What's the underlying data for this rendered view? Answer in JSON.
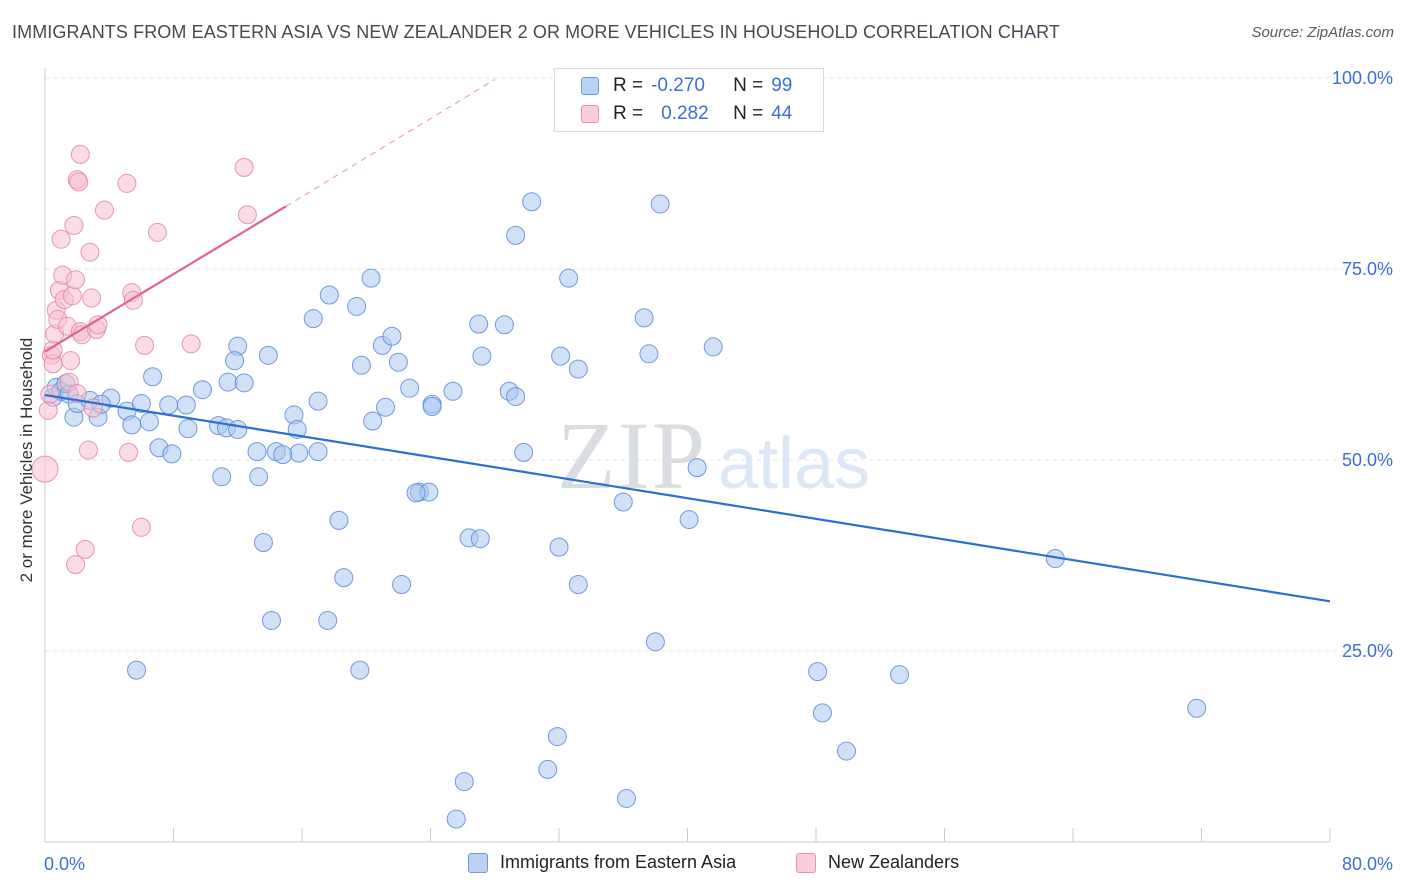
{
  "title": "IMMIGRANTS FROM EASTERN ASIA VS NEW ZEALANDER 2 OR MORE VEHICLES IN HOUSEHOLD CORRELATION CHART",
  "source": "Source: ZipAtlas.com",
  "watermark": {
    "zip": "ZIP",
    "atlas": "atlas"
  },
  "colors": {
    "blue_fill": "#a9c6f0",
    "blue_stroke": "#5b8ad8",
    "blue_line": "#2a6fd1",
    "pink_fill": "#f7bfd2",
    "pink_stroke": "#e484a7",
    "pink_line": "#e0628d",
    "grid": "#e3e5ea",
    "tick_label": "#3b6fd4",
    "axis": "#c8cbd0"
  },
  "legend": {
    "rows": [
      {
        "r_label": "R =",
        "r_value": "-0.270",
        "n_label": "N =",
        "n_value": "99"
      },
      {
        "r_label": "R =",
        "r_value": "0.282",
        "n_label": "N =",
        "n_value": "44"
      }
    ]
  },
  "chart_data": {
    "type": "scatter",
    "title": "IMMIGRANTS FROM EASTERN ASIA VS NEW ZEALANDER 2 OR MORE VEHICLES IN HOUSEHOLD CORRELATION CHART",
    "xlabel": "",
    "ylabel": "2 or more Vehicles in Household",
    "xlim": [
      0,
      80
    ],
    "ylim": [
      0,
      100
    ],
    "x_tick_labels": [
      "0.0%",
      "80.0%"
    ],
    "y_ticks": [
      25,
      50,
      75,
      100
    ],
    "y_tick_labels": [
      "25.0%",
      "50.0%",
      "75.0%",
      "100.0%"
    ],
    "grid": true,
    "legend_position": "top-center",
    "series": [
      {
        "name": "Immigrants from Eastern Asia",
        "color": "#a9c6f0",
        "trend": {
          "x0": 0,
          "y0": 58.5,
          "x1": 80,
          "y1": 31.5
        },
        "points": [
          [
            0.5,
            58.2
          ],
          [
            0.7,
            59.5
          ],
          [
            1.0,
            59.0
          ],
          [
            1.3,
            60.0
          ],
          [
            1.5,
            58.6
          ],
          [
            1.8,
            55.6
          ],
          [
            2.0,
            57.4
          ],
          [
            2.8,
            57.8
          ],
          [
            3.3,
            55.6
          ],
          [
            4.1,
            58.1
          ],
          [
            3.5,
            57.3
          ],
          [
            5.1,
            56.4
          ],
          [
            5.4,
            54.6
          ],
          [
            6.0,
            57.4
          ],
          [
            6.5,
            55.0
          ],
          [
            6.7,
            60.9
          ],
          [
            7.1,
            51.6
          ],
          [
            7.7,
            57.2
          ],
          [
            8.8,
            57.2
          ],
          [
            8.9,
            54.1
          ],
          [
            9.8,
            59.2
          ],
          [
            10.8,
            54.5
          ],
          [
            11.3,
            54.2
          ],
          [
            11.4,
            60.2
          ],
          [
            12.4,
            60.1
          ],
          [
            12.0,
            64.9
          ],
          [
            11.8,
            63.0
          ],
          [
            11.0,
            47.8
          ],
          [
            12.0,
            54.0
          ],
          [
            13.2,
            51.1
          ],
          [
            13.6,
            39.2
          ],
          [
            13.9,
            63.7
          ],
          [
            14.4,
            51.1
          ],
          [
            15.5,
            55.9
          ],
          [
            15.7,
            54.0
          ],
          [
            15.8,
            50.9
          ],
          [
            17.0,
            57.7
          ],
          [
            17.0,
            51.1
          ],
          [
            16.7,
            68.5
          ],
          [
            17.7,
            71.6
          ],
          [
            18.3,
            42.1
          ],
          [
            18.6,
            34.6
          ],
          [
            19.4,
            70.1
          ],
          [
            19.7,
            62.4
          ],
          [
            20.3,
            73.8
          ],
          [
            20.4,
            55.1
          ],
          [
            21.0,
            65.0
          ],
          [
            21.2,
            56.9
          ],
          [
            21.6,
            66.2
          ],
          [
            22.0,
            62.8
          ],
          [
            22.2,
            33.7
          ],
          [
            22.7,
            59.4
          ],
          [
            23.3,
            45.8
          ],
          [
            23.9,
            45.8
          ],
          [
            24.1,
            57.3
          ],
          [
            25.4,
            59.0
          ],
          [
            26.4,
            39.8
          ],
          [
            27.1,
            39.7
          ],
          [
            27.2,
            63.6
          ],
          [
            27.0,
            67.8
          ],
          [
            28.6,
            67.7
          ],
          [
            28.9,
            59.0
          ],
          [
            29.3,
            58.3
          ],
          [
            29.8,
            51.0
          ],
          [
            29.3,
            79.4
          ],
          [
            30.3,
            83.8
          ],
          [
            32.0,
            38.6
          ],
          [
            32.1,
            63.6
          ],
          [
            32.6,
            73.8
          ],
          [
            33.2,
            61.9
          ],
          [
            33.2,
            33.7
          ],
          [
            36.0,
            44.5
          ],
          [
            37.3,
            68.6
          ],
          [
            37.6,
            63.9
          ],
          [
            38.3,
            83.5
          ],
          [
            38.0,
            26.2
          ],
          [
            40.1,
            42.2
          ],
          [
            40.6,
            49.0
          ],
          [
            41.6,
            64.8
          ],
          [
            48.1,
            22.3
          ],
          [
            53.2,
            21.9
          ],
          [
            5.7,
            22.5
          ],
          [
            14.1,
            29.0
          ],
          [
            17.6,
            29.0
          ],
          [
            19.6,
            22.5
          ],
          [
            13.3,
            47.8
          ],
          [
            23.1,
            45.7
          ],
          [
            31.9,
            13.8
          ],
          [
            31.3,
            9.5
          ],
          [
            36.2,
            5.7
          ],
          [
            26.1,
            7.9
          ],
          [
            25.6,
            3.0
          ],
          [
            48.4,
            16.9
          ],
          [
            49.9,
            11.9
          ],
          [
            71.7,
            17.5
          ],
          [
            62.9,
            37.1
          ],
          [
            14.8,
            50.7
          ],
          [
            7.9,
            50.8
          ],
          [
            24.1,
            57.0
          ]
        ]
      },
      {
        "name": "New Zealanders",
        "color": "#f7bfd2",
        "trend": {
          "x0": 0,
          "y0": 64.2,
          "x1": 15,
          "y1": 83.2,
          "dashed_to_x": 28,
          "dashed_to_y": 99.8
        },
        "points": [
          [
            0.0,
            48.8
          ],
          [
            0.2,
            56.5
          ],
          [
            0.3,
            58.6
          ],
          [
            0.4,
            63.7
          ],
          [
            0.5,
            62.6
          ],
          [
            0.5,
            64.4
          ],
          [
            0.6,
            66.5
          ],
          [
            0.7,
            69.6
          ],
          [
            0.8,
            68.4
          ],
          [
            0.9,
            72.2
          ],
          [
            1.0,
            78.9
          ],
          [
            1.1,
            74.2
          ],
          [
            1.2,
            71.0
          ],
          [
            1.4,
            67.5
          ],
          [
            1.5,
            60.2
          ],
          [
            1.6,
            63.0
          ],
          [
            1.7,
            71.5
          ],
          [
            1.8,
            80.7
          ],
          [
            1.9,
            73.6
          ],
          [
            2.2,
            66.8
          ],
          [
            2.0,
            58.7
          ],
          [
            1.9,
            36.3
          ],
          [
            2.0,
            86.7
          ],
          [
            2.1,
            86.4
          ],
          [
            2.2,
            90.0
          ],
          [
            2.3,
            66.4
          ],
          [
            2.5,
            38.3
          ],
          [
            2.7,
            51.3
          ],
          [
            2.8,
            77.2
          ],
          [
            2.9,
            71.2
          ],
          [
            3.0,
            56.8
          ],
          [
            3.2,
            67.1
          ],
          [
            3.3,
            67.7
          ],
          [
            3.7,
            82.7
          ],
          [
            5.1,
            86.2
          ],
          [
            5.2,
            51.0
          ],
          [
            5.4,
            71.9
          ],
          [
            5.5,
            70.9
          ],
          [
            6.0,
            41.2
          ],
          [
            6.2,
            65.0
          ],
          [
            7.0,
            79.8
          ],
          [
            12.4,
            88.3
          ],
          [
            12.6,
            82.1
          ],
          [
            9.1,
            65.2
          ]
        ]
      }
    ]
  },
  "bottom_legend": {
    "series1": "Immigrants from Eastern Asia",
    "series2": "New Zealanders"
  }
}
